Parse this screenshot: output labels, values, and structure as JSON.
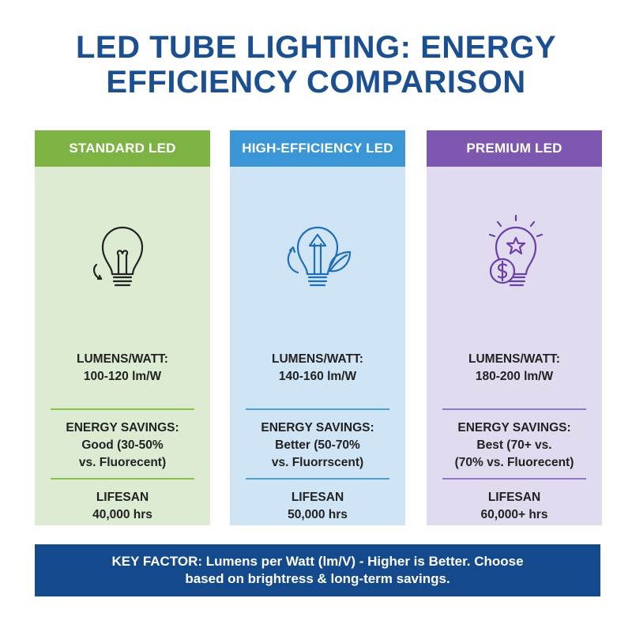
{
  "title": {
    "line1": "LED TUBE LIGHTING: ENERGY",
    "line2": "EFFICIENCY COMPARISON"
  },
  "colors": {
    "title": "#1b4f8f",
    "standard": "#7cb342",
    "high_efficiency": "#3a96d7",
    "premium": "#7e57b1",
    "footer": "#144a8c"
  },
  "cards": [
    {
      "header": "STANDARD LED",
      "icon": "lightbulb-with-down-arrow-icon",
      "lumens_label": "LUMENS/WATT:",
      "lumens_value": "100-120 lm/W",
      "savings_label": "ENERGY SAVINGS:",
      "savings_line1": "Good (30-50%",
      "savings_line2": "vs. Fluorecent)",
      "lifespan_label": "LIFESAN",
      "lifespan_value": "40,000 hrs"
    },
    {
      "header": "HIGH-EFFICIENCY LED",
      "icon": "lightbulb-with-up-arrow-and-leaf-icon",
      "lumens_label": "LUMENS/WATT:",
      "lumens_value": "140-160 lm/W",
      "savings_label": "ENERGY SAVINGS:",
      "savings_line1": "Better (50-70%",
      "savings_line2": "vs. Fluorrscent)",
      "lifespan_label": "LIFESAN",
      "lifespan_value": "50,000 hrs"
    },
    {
      "header": "PREMIUM LED",
      "icon": "lightbulb-with-star-and-dollar-icon",
      "lumens_label": "LUMENS/WATT:",
      "lumens_value": "180-200 lm/W",
      "savings_label": "ENERGY SAVINGS:",
      "savings_line1": "Best (70+ vs.",
      "savings_line2": "(70% vs. Fluorecent)",
      "lifespan_label": "LIFESAN",
      "lifespan_value": "60,000+ hrs"
    }
  ],
  "footer": {
    "line1": "KEY FACTOR: Lumens per Watt (lm/V) - Higher is Better. Choose",
    "line2": "based on brightress & long-term savings."
  }
}
